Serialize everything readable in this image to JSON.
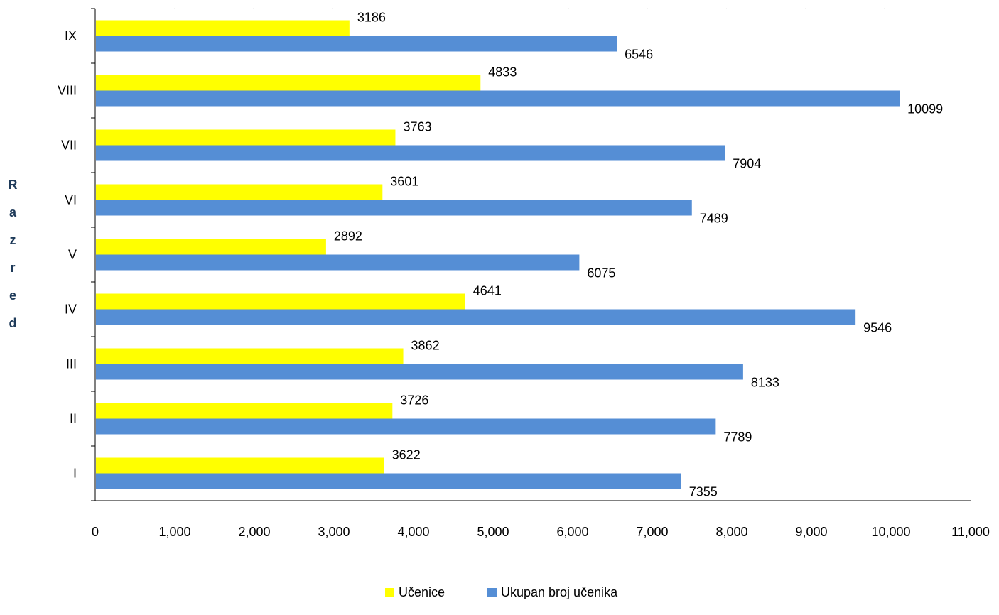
{
  "chart_data": {
    "type": "bar",
    "orientation": "horizontal",
    "title": "",
    "xlabel": "",
    "ylabel": "Razred",
    "categories": [
      "I",
      "II",
      "III",
      "IV",
      "V",
      "VI",
      "VII",
      "VIII",
      "IX"
    ],
    "series": [
      {
        "name": "Učenice",
        "color": "#ffff00",
        "values": [
          3622,
          3726,
          3862,
          4641,
          2892,
          3601,
          3763,
          4833,
          3186
        ]
      },
      {
        "name": "Ukupan broj učenika",
        "color": "#558ed5",
        "values": [
          7355,
          7789,
          8133,
          9546,
          6075,
          7489,
          7904,
          10099,
          6546
        ]
      }
    ],
    "xlim": [
      0,
      11000
    ],
    "xticks": [
      0,
      1000,
      2000,
      3000,
      4000,
      5000,
      6000,
      7000,
      8000,
      9000,
      10000,
      11000
    ],
    "xtick_labels": [
      "0",
      "1,000",
      "2,000",
      "3,000",
      "4,000",
      "5,000",
      "6,000",
      "7,000",
      "8,000",
      "9,000",
      "10,000",
      "11,000"
    ],
    "grid": false,
    "legend_position": "bottom"
  }
}
